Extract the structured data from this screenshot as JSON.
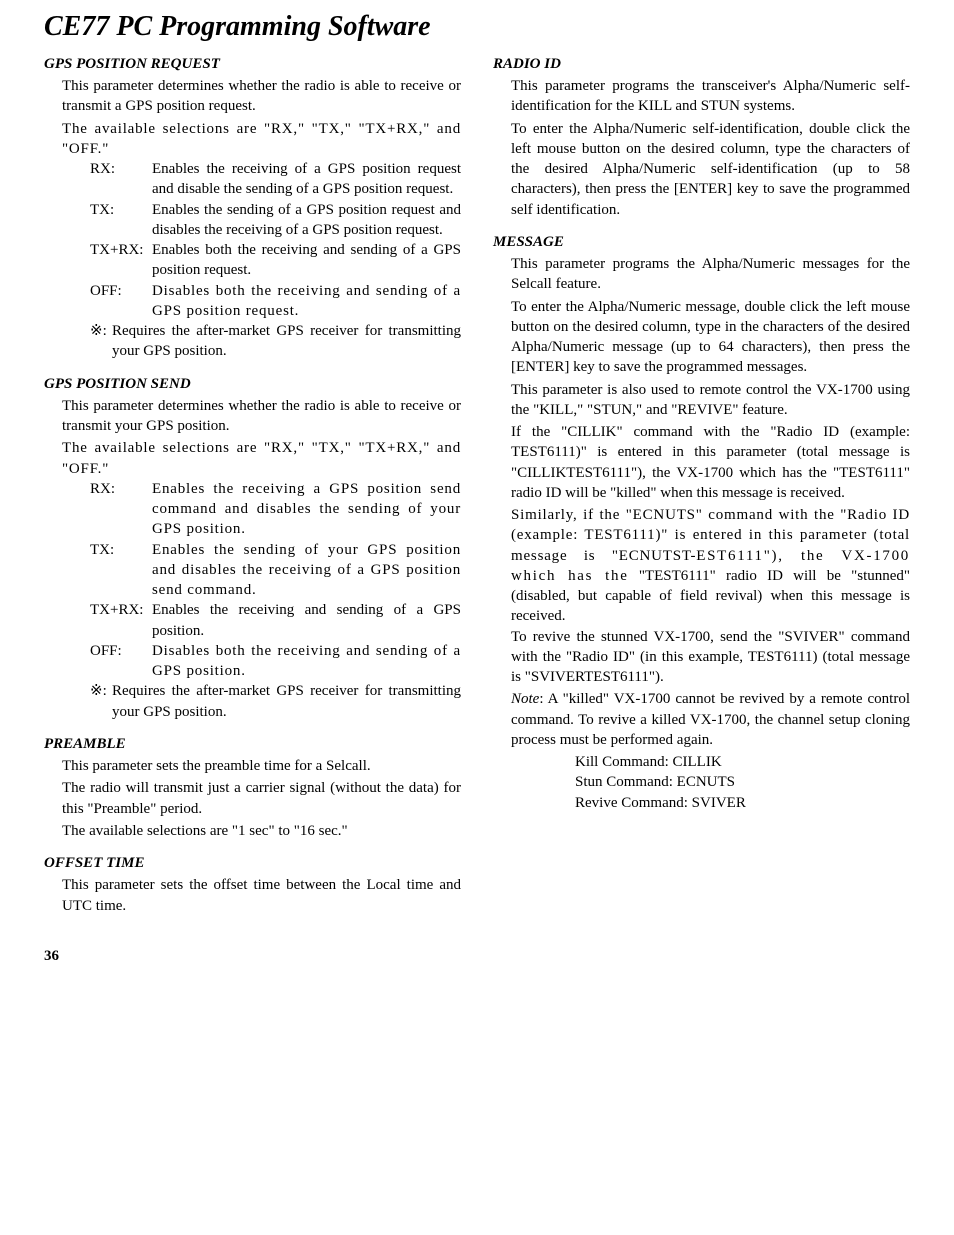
{
  "page_title": "CE77 PC Programming Software",
  "page_number": "36",
  "left": {
    "gps_request": {
      "heading": "GPS POSITION REQUEST",
      "p1": "This parameter determines whether the radio is able to receive or transmit a GPS position request.",
      "p2": "The available selections are \"RX,\" \"TX,\" \"TX+RX,\" and \"OFF.\"",
      "rx_term": "RX:",
      "rx_desc": "Enables the receiving of a GPS position request and disable the sending of a GPS position request.",
      "tx_term": "TX:",
      "tx_desc": "Enables the sending of a GPS position request and disables the receiving of a GPS position request.",
      "txrx_term": "TX+RX:",
      "txrx_desc": "Enables both the receiving and sending of a GPS position request.",
      "off_term": "OFF:",
      "off_desc": "Disables both the receiving and sending of a GPS position request.",
      "note_mark": "※:",
      "note_desc": "Requires the after-market GPS receiver for transmitting your GPS position."
    },
    "gps_send": {
      "heading": "GPS POSITION SEND",
      "p1": "This parameter determines whether the radio is able to receive or transmit your GPS position.",
      "p2": "The available selections are \"RX,\" \"TX,\" \"TX+RX,\" and \"OFF.\"",
      "rx_term": "RX:",
      "rx_desc": "Enables the receiving a GPS position send command and disables the sending of your GPS position.",
      "tx_term": "TX:",
      "tx_desc": "Enables the sending of your GPS position and disables the receiving of a GPS position send command.",
      "txrx_term": "TX+RX:",
      "txrx_desc": "Enables the receiving and sending of a GPS position.",
      "off_term": "OFF:",
      "off_desc": "Disables both the receiving and sending of a GPS position.",
      "note_mark": "※:",
      "note_desc": "Requires the after-market GPS receiver for transmitting your GPS position."
    },
    "preamble": {
      "heading": "PREAMBLE",
      "p1": "This parameter sets the preamble time for a Selcall.",
      "p2": "The radio will transmit just a carrier signal (without the data) for this \"Preamble\" period.",
      "p3": "The available selections are \"1 sec\" to \"16 sec.\""
    },
    "offset": {
      "heading": "OFFSET TIME",
      "p1": "This parameter sets the offset time between the Local time and UTC time."
    }
  },
  "right": {
    "radio_id": {
      "heading": "RADIO ID",
      "p1": "This parameter programs the transceiver's Alpha/Numeric self-identification for the KILL and STUN systems.",
      "p2": "To enter the Alpha/Numeric self-identification, double click the left mouse button on the desired column, type the characters of the desired Alpha/Numeric self-identification (up to 58 characters), then press the [ENTER] key to save the programmed self identification."
    },
    "message": {
      "heading": "MESSAGE",
      "p1": "This parameter programs the Alpha/Numeric messages for the Selcall feature.",
      "p2": "To enter the Alpha/Numeric message, double click the left mouse button on the desired column, type in the characters of the desired Alpha/Numeric message (up to 64 characters), then press the [ENTER] key to save the programmed messages.",
      "p3": "This parameter is also used to remote control the VX-1700 using the \"KILL,\" \"STUN,\" and \"REVIVE\" feature.",
      "p4": "If the \"CILLIK\" command with the \"Radio ID (example: TEST6111)\" is entered in this parameter (total message is \"CILLIKTEST6111\"), the VX-1700 which has the \"TEST6111\" radio ID will be \"killed\" when this message is received.",
      "p5a": "Similarly, if the \"ECNUTS\" command with the \"Radio ID (example: TEST6111)\" is entered in this parameter (total message is \"ECNUTST-",
      "p5b": "EST6111\"), the VX-1700 which has the",
      "p5c": "\"TEST6111\" radio ID will be \"stunned\" (disabled, but capable of field revival) when this message is received.",
      "p6": "To revive the stunned VX-1700, send the \"SVIVER\" command with the \"Radio ID\" (in this example, TEST6111) (total message is \"SVIVERTEST6111\").",
      "p7_note": "Note",
      "p7": ": A \"killed\" VX-1700 cannot be revived by a remote control command. To revive a killed VX-1700, the channel setup cloning process must be performed again.",
      "kill": "Kill Command: CILLIK",
      "stun": "Stun Command: ECNUTS",
      "revive": "Revive Command: SVIVER"
    }
  }
}
